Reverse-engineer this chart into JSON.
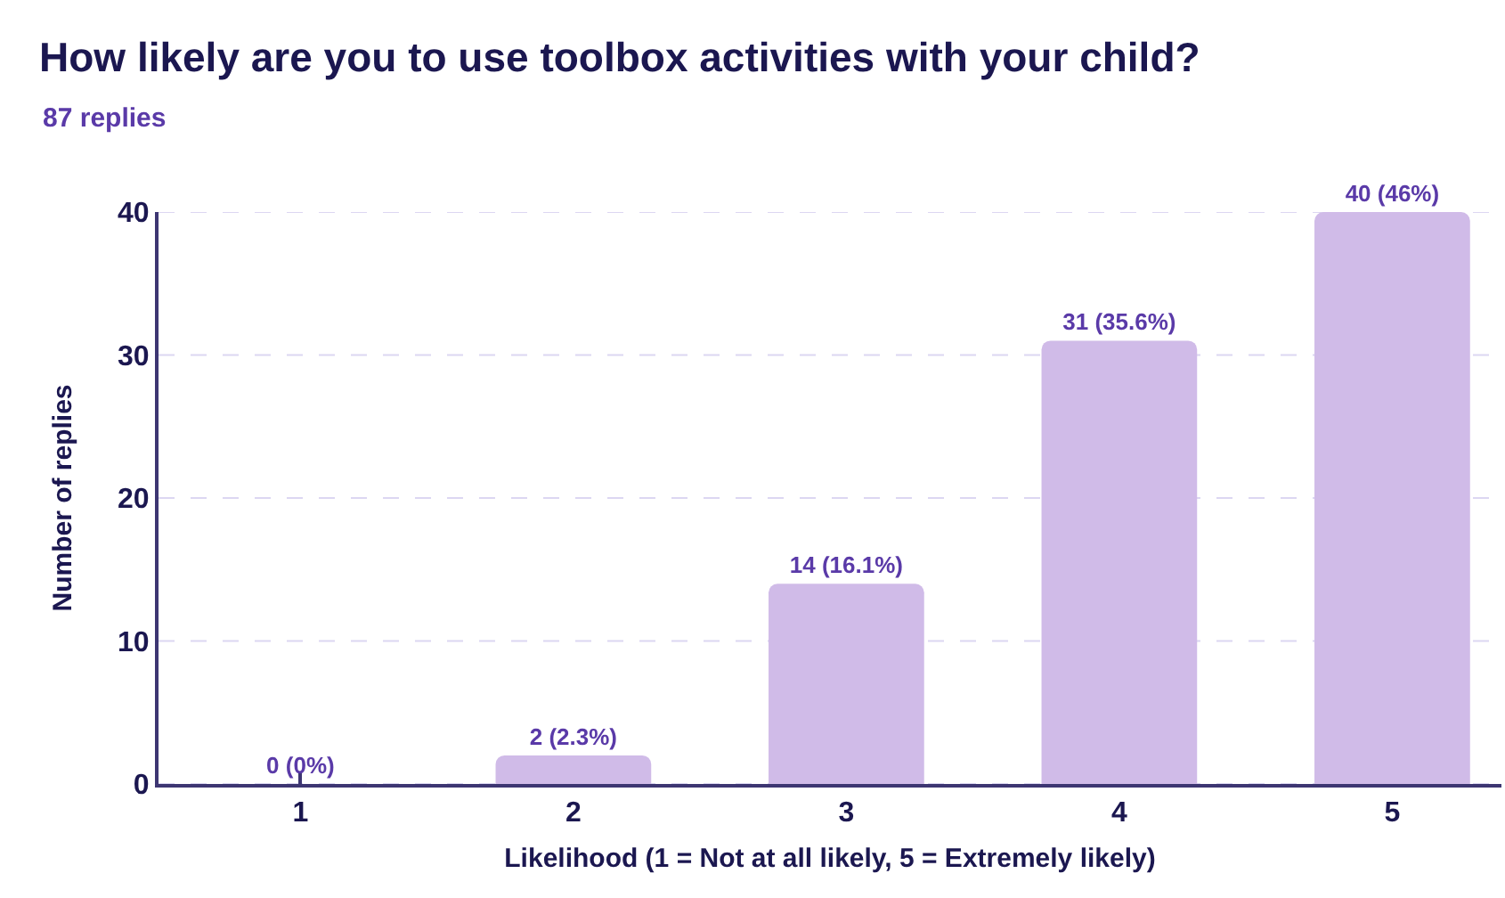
{
  "chart_data": {
    "type": "bar",
    "title": "How likely are you to use toolbox activities with your child?",
    "subtitle": "87 replies",
    "xlabel": "Likelihood (1 = Not at all likely, 5 = Extremely likely)",
    "ylabel": "Number of replies",
    "categories": [
      "1",
      "2",
      "3",
      "4",
      "5"
    ],
    "values": [
      0,
      2,
      14,
      31,
      40
    ],
    "color": "#d0bbe8",
    "value_labels": [
      "0 (0%)",
      "2 (2.3%)",
      "14 (16.1%)",
      "31 (35.6%)",
      "40 (46%)"
    ],
    "ylim": [
      0,
      40
    ],
    "yticks": [
      0,
      10,
      20,
      30,
      40
    ],
    "grid": "y"
  }
}
